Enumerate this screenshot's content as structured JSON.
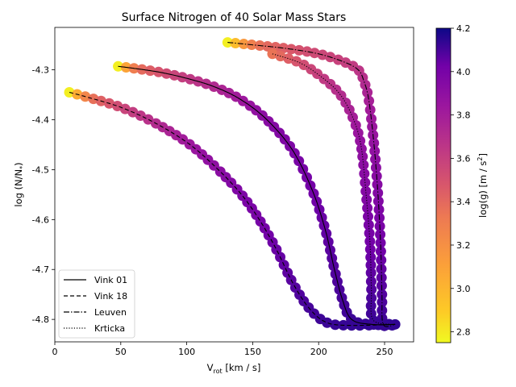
{
  "chart_data": {
    "type": "scatter",
    "title": "Surface Nitrogen of 40 Solar Mass Stars",
    "xlabel_main": "V",
    "xlabel_sub": "rot",
    "xlabel_unit": " [km / s]",
    "ylabel": "log (N/N",
    "ylabel_sub": "*",
    "ylabel_end": ")",
    "xlim": [
      0,
      272
    ],
    "ylim": [
      -4.845,
      -4.215
    ],
    "xticks": [
      0,
      50,
      100,
      150,
      200,
      250
    ],
    "yticks": [
      -4.3,
      -4.4,
      -4.5,
      -4.6,
      -4.7,
      -4.8
    ],
    "colorbar": {
      "label": "log(g) [m / s",
      "label_sup": "2",
      "label_end": "]",
      "range": [
        2.75,
        4.2
      ],
      "ticks": [
        2.8,
        3.0,
        3.2,
        3.4,
        3.6,
        3.8,
        4.0,
        4.2
      ],
      "colormap": "plasma"
    },
    "legend": {
      "position": "lower-left",
      "entries": [
        "Vink 01",
        "Vink 18",
        "Leuven",
        "Krticka"
      ]
    },
    "series": [
      {
        "name": "Vink 01",
        "linestyle": "solid",
        "points": [
          [
            48,
            -4.293,
            2.78
          ],
          [
            60,
            -4.297,
            3.3
          ],
          [
            80,
            -4.305,
            3.5
          ],
          [
            100,
            -4.317,
            3.62
          ],
          [
            120,
            -4.333,
            3.72
          ],
          [
            140,
            -4.358,
            3.82
          ],
          [
            160,
            -4.398,
            3.92
          ],
          [
            180,
            -4.46,
            3.98
          ],
          [
            195,
            -4.54,
            4.02
          ],
          [
            205,
            -4.62,
            4.05
          ],
          [
            212,
            -4.7,
            4.08
          ],
          [
            218,
            -4.76,
            4.1
          ],
          [
            225,
            -4.8,
            4.12
          ],
          [
            240,
            -4.81,
            4.13
          ],
          [
            258,
            -4.81,
            4.14
          ]
        ]
      },
      {
        "name": "Vink 18",
        "linestyle": "dashed",
        "points": [
          [
            11,
            -4.345,
            2.78
          ],
          [
            25,
            -4.355,
            3.3
          ],
          [
            50,
            -4.375,
            3.55
          ],
          [
            75,
            -4.405,
            3.7
          ],
          [
            100,
            -4.445,
            3.82
          ],
          [
            120,
            -4.49,
            3.9
          ],
          [
            140,
            -4.545,
            3.97
          ],
          [
            155,
            -4.6,
            4.0
          ],
          [
            168,
            -4.66,
            4.04
          ],
          [
            180,
            -4.725,
            4.07
          ],
          [
            192,
            -4.775,
            4.1
          ],
          [
            205,
            -4.805,
            4.12
          ],
          [
            222,
            -4.812,
            4.13
          ],
          [
            258,
            -4.81,
            4.14
          ]
        ]
      },
      {
        "name": "Leuven",
        "linestyle": "dashdot",
        "points": [
          [
            131,
            -4.245,
            2.78
          ],
          [
            150,
            -4.25,
            3.3
          ],
          [
            175,
            -4.257,
            3.45
          ],
          [
            200,
            -4.268,
            3.55
          ],
          [
            220,
            -4.285,
            3.6
          ],
          [
            230,
            -4.3,
            3.65
          ],
          [
            234,
            -4.32,
            3.7
          ],
          [
            238,
            -4.36,
            3.78
          ],
          [
            242,
            -4.45,
            3.88
          ],
          [
            245,
            -4.55,
            3.95
          ],
          [
            247,
            -4.65,
            4.02
          ],
          [
            248,
            -4.75,
            4.08
          ],
          [
            249,
            -4.81,
            4.12
          ],
          [
            258,
            -4.81,
            4.14
          ]
        ]
      },
      {
        "name": "Krticka",
        "linestyle": "dotted",
        "points": [
          [
            165,
            -4.268,
            3.35
          ],
          [
            185,
            -4.285,
            3.5
          ],
          [
            200,
            -4.31,
            3.6
          ],
          [
            215,
            -4.345,
            3.7
          ],
          [
            225,
            -4.39,
            3.78
          ],
          [
            232,
            -4.45,
            3.88
          ],
          [
            236,
            -4.55,
            3.95
          ],
          [
            239,
            -4.65,
            4.02
          ],
          [
            240,
            -4.74,
            4.08
          ],
          [
            241,
            -4.8,
            4.12
          ],
          [
            255,
            -4.81,
            4.14
          ]
        ]
      }
    ]
  }
}
